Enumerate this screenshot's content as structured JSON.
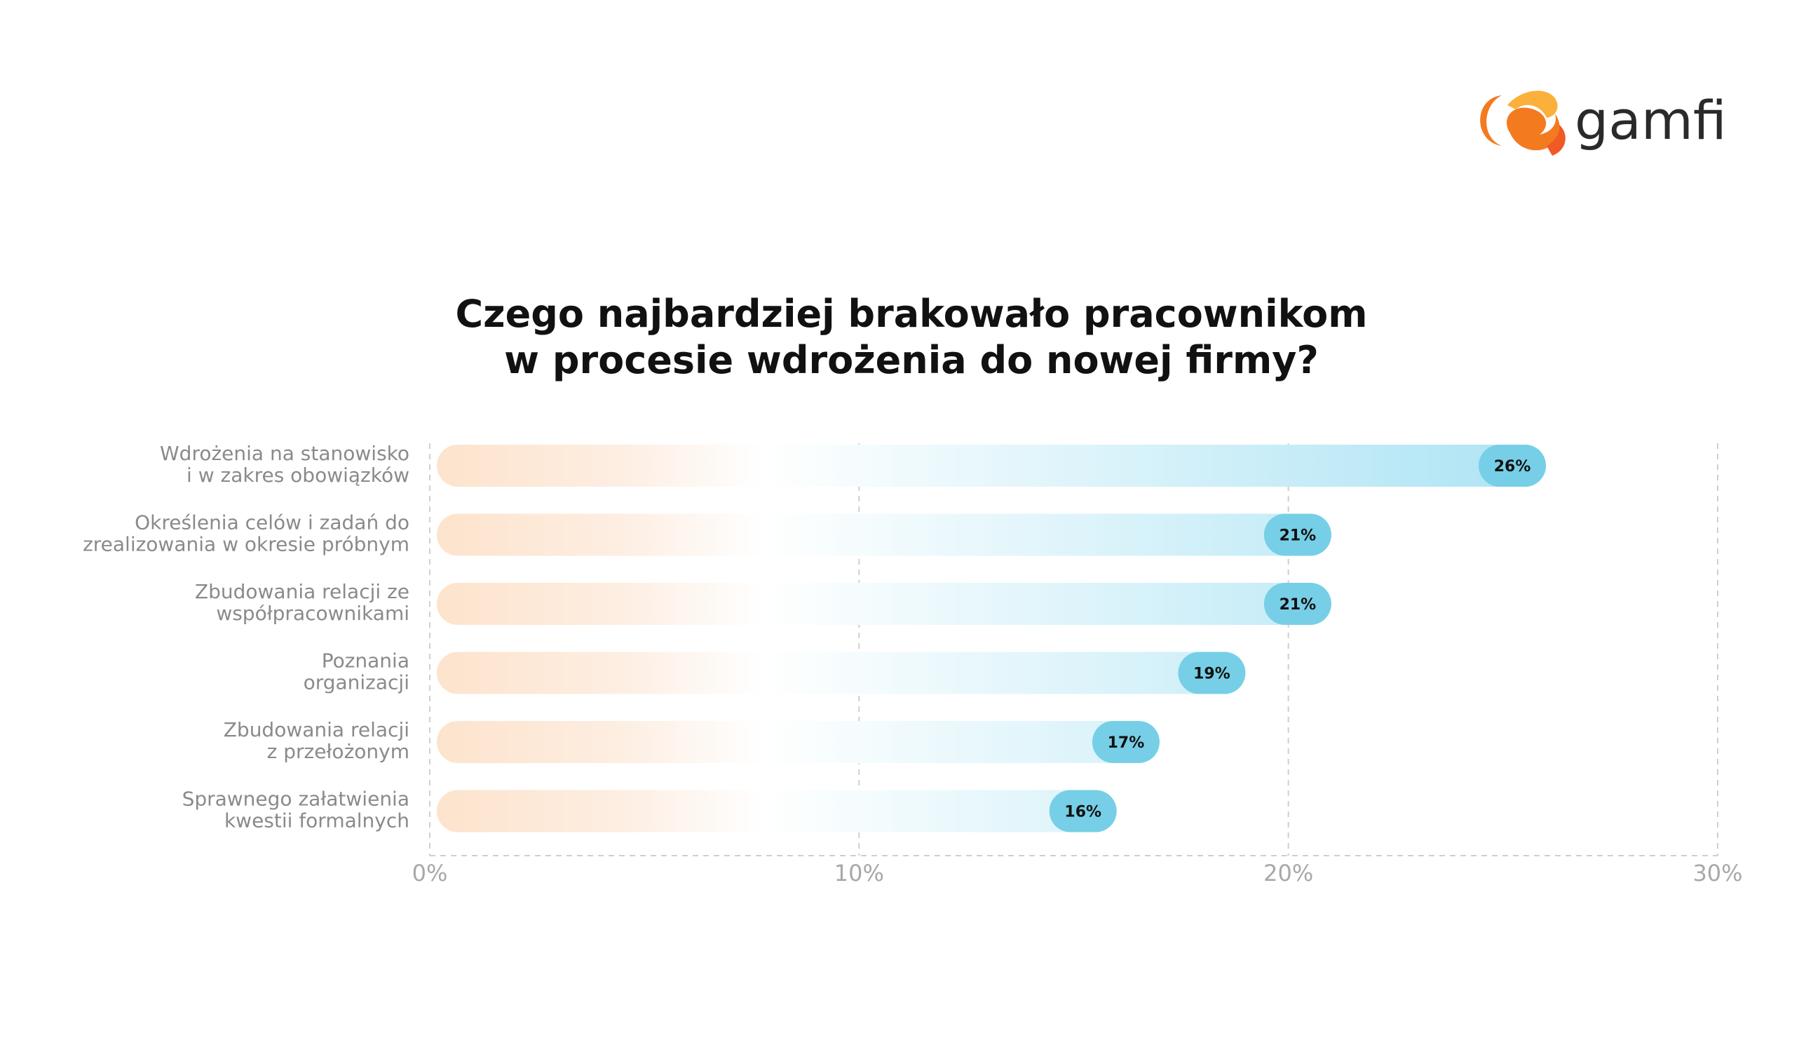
{
  "brand": {
    "name": "gamfi",
    "colors": {
      "orange": "#f47a20",
      "orange_light": "#fbb03b",
      "bar_start": "#fde3cc",
      "bar_end": "#aee4f4",
      "label_bubble": "#76cfe6",
      "text_dark": "#111111"
    },
    "logo_icon": "gamfi-flame-icon"
  },
  "chart_data": {
    "type": "bar",
    "orientation": "horizontal",
    "title": "Czego najbardziej brakowało pracownikom w procesie wdrożenia do nowej firmy?",
    "title_lines": [
      "Czego najbardziej brakowało pracownikom",
      "w procesie wdrożenia do nowej firmy?"
    ],
    "categories": [
      [
        "Wdrożenia na stanowisko",
        "i w zakres obowiązków"
      ],
      [
        "Określenia celów i zadań do",
        "zrealizowania w okresie próbnym"
      ],
      [
        "Zbudowania relacji ze",
        "współpracownikami"
      ],
      [
        "Poznania",
        "organizacji"
      ],
      [
        "Zbudowania relacji",
        "z przełożonym"
      ],
      [
        "Sprawnego załatwienia",
        "kwestii formalnych"
      ]
    ],
    "values": [
      26,
      21,
      21,
      19,
      17,
      16
    ],
    "value_labels": [
      "26%",
      "21%",
      "21%",
      "19%",
      "17%",
      "16%"
    ],
    "xlim": [
      0,
      30
    ],
    "x_ticks": [
      0,
      10,
      20,
      30
    ],
    "x_tick_labels": [
      "0%",
      "10%",
      "20%",
      "30%"
    ],
    "grid": "vertical dashed",
    "xlabel": "",
    "ylabel": ""
  }
}
